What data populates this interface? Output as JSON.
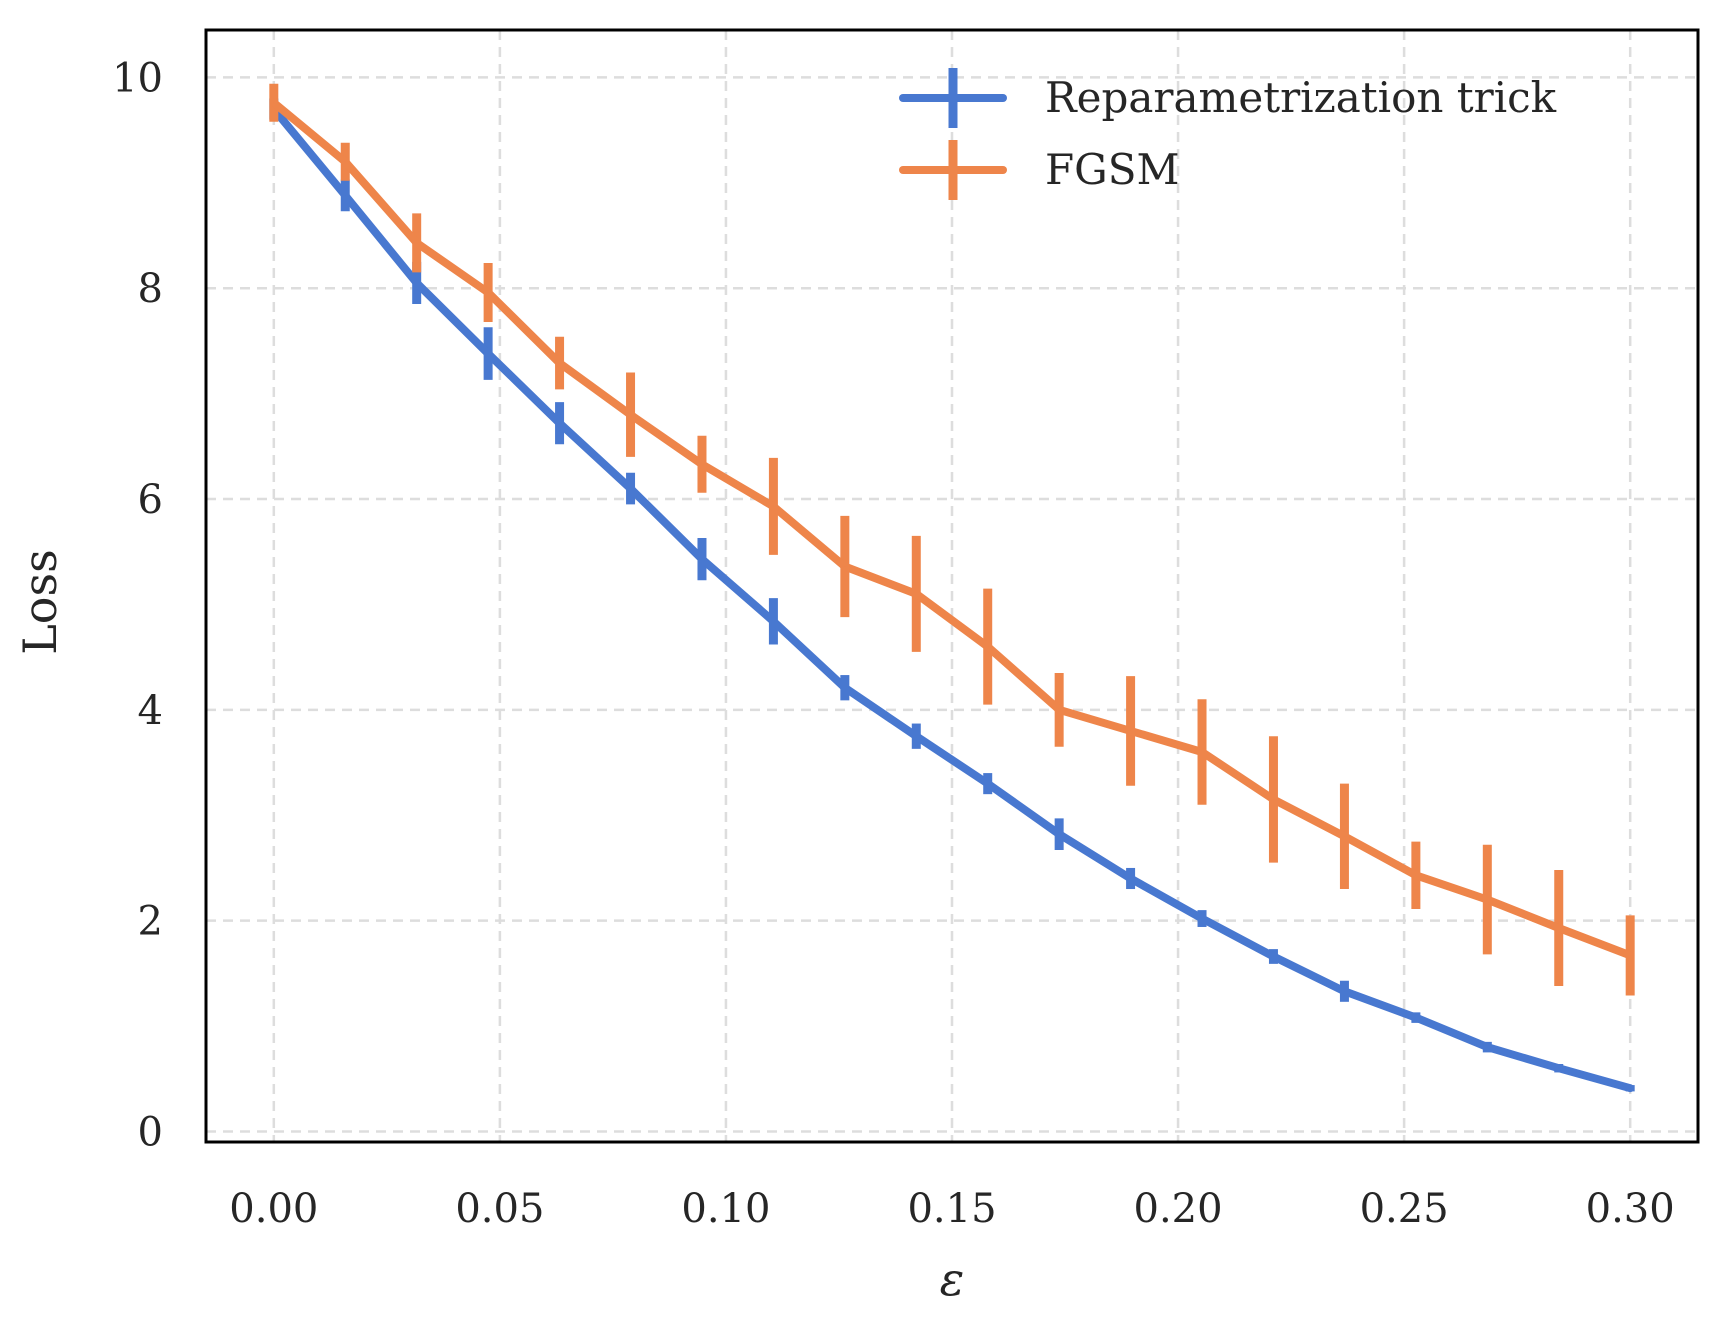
{
  "chart_data": {
    "type": "line",
    "xlabel": "ε",
    "ylabel": "Loss",
    "xlim": [
      -0.015,
      0.315
    ],
    "ylim": [
      -0.1,
      10.45
    ],
    "x_ticks": [
      "0.00",
      "0.05",
      "0.10",
      "0.15",
      "0.20",
      "0.25",
      "0.30"
    ],
    "x_tick_values": [
      0,
      0.05,
      0.1,
      0.15,
      0.2,
      0.25,
      0.3
    ],
    "y_ticks": [
      "0",
      "2",
      "4",
      "6",
      "8",
      "10"
    ],
    "y_tick_values": [
      0,
      2,
      4,
      6,
      8,
      10
    ],
    "grid": true,
    "legend_position": "top-right",
    "x": [
      0.0,
      0.0158,
      0.0316,
      0.0474,
      0.0632,
      0.0789,
      0.0947,
      0.1105,
      0.1263,
      0.1421,
      0.1579,
      0.1737,
      0.1895,
      0.2053,
      0.2211,
      0.2368,
      0.2526,
      0.2684,
      0.2842,
      0.3
    ],
    "series": [
      {
        "name": "Reparametrization trick",
        "color": "#4878d0",
        "values": [
          9.7,
          8.88,
          8.05,
          7.38,
          6.72,
          6.1,
          5.43,
          4.84,
          4.21,
          3.75,
          3.3,
          2.82,
          2.4,
          2.02,
          1.66,
          1.33,
          1.08,
          0.8,
          0.6,
          0.41
        ],
        "errors": [
          0.1,
          0.15,
          0.2,
          0.25,
          0.2,
          0.15,
          0.2,
          0.22,
          0.12,
          0.12,
          0.1,
          0.15,
          0.1,
          0.08,
          0.07,
          0.1,
          0.05,
          0.05,
          0.04,
          0.03
        ]
      },
      {
        "name": "FGSM",
        "color": "#ee854a",
        "values": [
          9.76,
          9.2,
          8.43,
          7.96,
          7.29,
          6.8,
          6.33,
          5.93,
          5.36,
          5.1,
          4.6,
          4.0,
          3.8,
          3.6,
          3.15,
          2.8,
          2.43,
          2.2,
          1.93,
          1.67
        ],
        "errors": [
          0.18,
          0.18,
          0.28,
          0.28,
          0.25,
          0.4,
          0.27,
          0.46,
          0.48,
          0.55,
          0.55,
          0.35,
          0.52,
          0.5,
          0.6,
          0.5,
          0.32,
          0.52,
          0.55,
          0.38
        ]
      }
    ]
  }
}
